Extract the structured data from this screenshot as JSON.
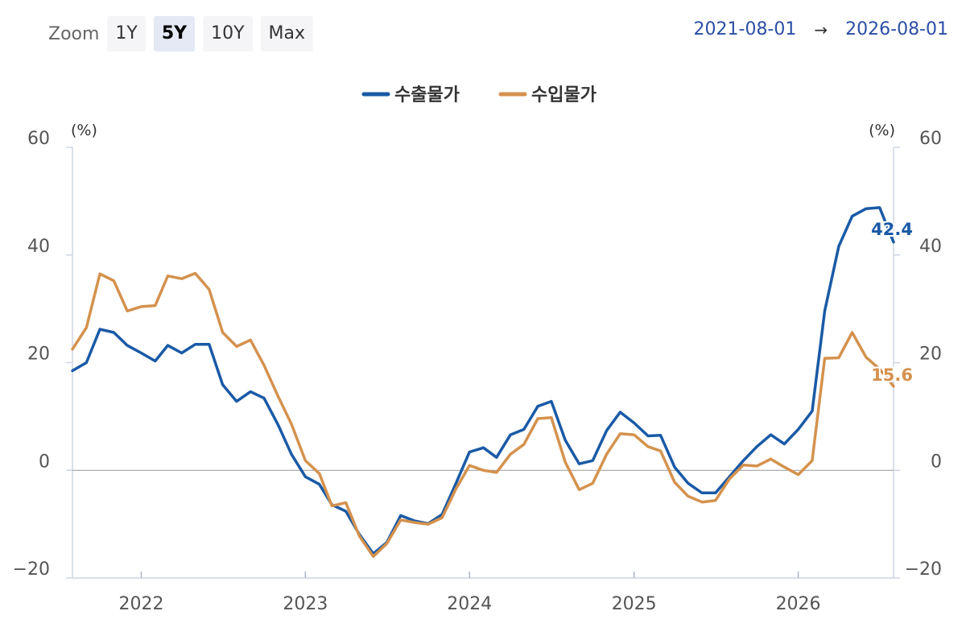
{
  "toolbar": {
    "zoom_label": "Zoom",
    "buttons": [
      "1Y",
      "5Y",
      "10Y",
      "Max"
    ],
    "active": "5Y",
    "range_start": "2021-08-01",
    "range_arrow": "→",
    "range_end": "2026-08-01"
  },
  "chart_data": {
    "type": "line",
    "title": "",
    "legend_position": "top-center",
    "yunit_left": "(%)",
    "yunit_right": "(%)",
    "ylim": [
      -20,
      60
    ],
    "yticks": [
      -20,
      0,
      20,
      40,
      60
    ],
    "xlim": [
      "2021-08-01",
      "2026-08-01"
    ],
    "xticks": [
      "2022",
      "2023",
      "2024",
      "2025",
      "2026"
    ],
    "xtick_dates": [
      "2022-01-01",
      "2023-01-01",
      "2024-01-01",
      "2025-01-01",
      "2026-01-01"
    ],
    "grid": false,
    "x": [
      "2021-08",
      "2021-09",
      "2021-10",
      "2021-11",
      "2021-12",
      "2022-01",
      "2022-02",
      "2022-03",
      "2022-04",
      "2022-05",
      "2022-06",
      "2022-07",
      "2022-08",
      "2022-09",
      "2022-10",
      "2022-11",
      "2022-12",
      "2023-01",
      "2023-02",
      "2023-03",
      "2023-04",
      "2023-05",
      "2023-06",
      "2023-07",
      "2023-08",
      "2023-09",
      "2023-10",
      "2023-11",
      "2023-12",
      "2024-01",
      "2024-02",
      "2024-03",
      "2024-04",
      "2024-05",
      "2024-06",
      "2024-07",
      "2024-08",
      "2024-09",
      "2024-10",
      "2024-11",
      "2024-12",
      "2025-01",
      "2025-02",
      "2025-03",
      "2025-04",
      "2025-05",
      "2025-06",
      "2025-07",
      "2025-08",
      "2025-09",
      "2025-10",
      "2025-11",
      "2025-12",
      "2026-01",
      "2026-02",
      "2026-03",
      "2026-04",
      "2026-05",
      "2026-06",
      "2026-07",
      "2026-08"
    ],
    "series": [
      {
        "name": "수출물가",
        "color": "#1a5aa6",
        "last_label": "42.4",
        "values": [
          18.5,
          20.0,
          26.2,
          25.6,
          23.2,
          21.8,
          20.3,
          23.2,
          21.8,
          23.4,
          23.4,
          15.9,
          12.8,
          14.6,
          13.4,
          8.5,
          3.0,
          -1.2,
          -2.6,
          -6.4,
          -7.6,
          -11.9,
          -15.5,
          -13.4,
          -8.4,
          -9.4,
          -9.9,
          -8.2,
          -2.6,
          3.4,
          4.2,
          2.4,
          6.6,
          7.6,
          11.9,
          12.8,
          5.6,
          1.2,
          1.8,
          7.4,
          10.8,
          8.8,
          6.4,
          6.5,
          0.6,
          -2.4,
          -4.2,
          -4.2,
          -1.2,
          1.8,
          4.4,
          6.6,
          4.9,
          7.6,
          11.0,
          29.6,
          41.6,
          47.2,
          48.6,
          48.8,
          42.4
        ]
      },
      {
        "name": "수입물가",
        "color": "#d4924e",
        "last_label": "15.6",
        "values": [
          22.5,
          26.5,
          36.5,
          35.2,
          29.6,
          30.4,
          30.6,
          36.1,
          35.6,
          36.6,
          33.6,
          25.6,
          23.0,
          24.2,
          19.5,
          13.8,
          8.6,
          1.8,
          -0.6,
          -6.6,
          -6.0,
          -12.2,
          -16.0,
          -13.6,
          -9.2,
          -9.7,
          -10.0,
          -8.8,
          -3.6,
          0.9,
          0.0,
          -0.4,
          3.0,
          4.8,
          9.6,
          9.8,
          1.5,
          -3.6,
          -2.4,
          3.0,
          6.8,
          6.6,
          4.4,
          3.6,
          -2.2,
          -4.8,
          -5.9,
          -5.6,
          -1.6,
          1.0,
          0.8,
          2.1,
          0.6,
          -0.8,
          1.8,
          20.8,
          20.9,
          25.6,
          21.0,
          18.8,
          15.6
        ]
      }
    ]
  }
}
